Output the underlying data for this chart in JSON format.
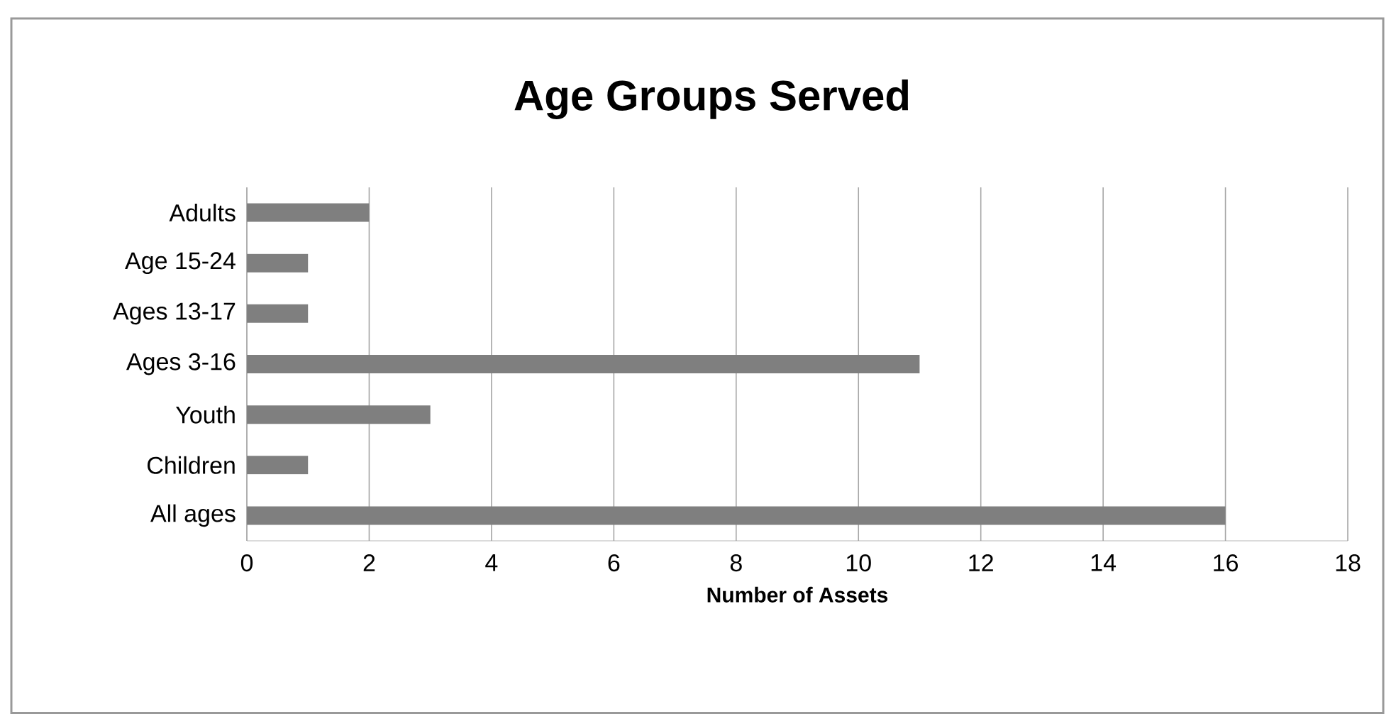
{
  "chart_data": {
    "type": "bar",
    "orientation": "horizontal",
    "title": "Age Groups Served",
    "xlabel": "Number of Assets",
    "categories": [
      "Adults",
      "Age 15-24",
      "Ages 13-17",
      "Ages 3-16",
      "Youth",
      "Children",
      "All ages"
    ],
    "values": [
      2,
      1,
      1,
      11,
      3,
      1,
      16
    ],
    "color": "#7f7f7f",
    "xlim": [
      0,
      18
    ],
    "xticks": [
      0,
      2,
      4,
      6,
      8,
      10,
      12,
      14,
      16,
      18
    ],
    "grid": "x"
  }
}
